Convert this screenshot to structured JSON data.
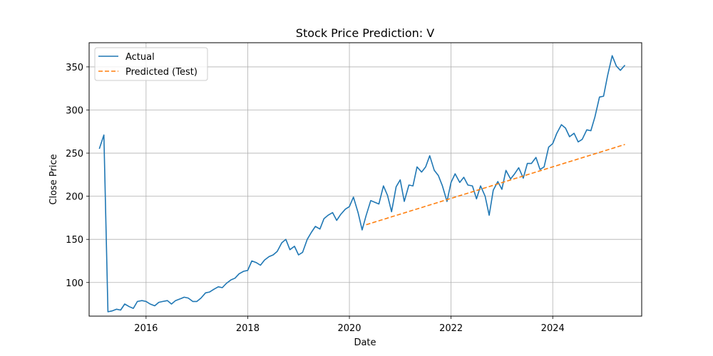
{
  "chart_data": {
    "type": "line",
    "title": "Stock Price Prediction: V",
    "xlabel": "Date",
    "ylabel": "Close Price",
    "xlim": [
      2014.88,
      2025.75
    ],
    "ylim": [
      61,
      378
    ],
    "grid": true,
    "legend_position": "top-left",
    "x_ticks": [
      2016,
      2018,
      2020,
      2022,
      2024
    ],
    "y_ticks": [
      100,
      150,
      200,
      250,
      300,
      350
    ],
    "series": [
      {
        "name": "Actual",
        "color": "#1f77b4",
        "style": "solid",
        "x": [
          2015.08,
          2015.17,
          2015.25,
          2015.33,
          2015.42,
          2015.5,
          2015.58,
          2015.67,
          2015.75,
          2015.83,
          2015.92,
          2016.0,
          2016.08,
          2016.17,
          2016.25,
          2016.33,
          2016.42,
          2016.5,
          2016.58,
          2016.67,
          2016.75,
          2016.83,
          2016.92,
          2017.0,
          2017.08,
          2017.17,
          2017.25,
          2017.33,
          2017.42,
          2017.5,
          2017.58,
          2017.67,
          2017.75,
          2017.83,
          2017.92,
          2018.0,
          2018.08,
          2018.17,
          2018.25,
          2018.33,
          2018.42,
          2018.5,
          2018.58,
          2018.67,
          2018.75,
          2018.83,
          2018.92,
          2019.0,
          2019.08,
          2019.17,
          2019.25,
          2019.33,
          2019.42,
          2019.5,
          2019.58,
          2019.67,
          2019.75,
          2019.83,
          2019.92,
          2020.0,
          2020.08,
          2020.17,
          2020.25,
          2020.33,
          2020.42,
          2020.5,
          2020.58,
          2020.67,
          2020.75,
          2020.83,
          2020.92,
          2021.0,
          2021.08,
          2021.17,
          2021.25,
          2021.33,
          2021.42,
          2021.5,
          2021.58,
          2021.67,
          2021.75,
          2021.83,
          2021.92,
          2022.0,
          2022.08,
          2022.17,
          2022.25,
          2022.33,
          2022.42,
          2022.5,
          2022.58,
          2022.67,
          2022.75,
          2022.83,
          2022.92,
          2023.0,
          2023.08,
          2023.17,
          2023.25,
          2023.33,
          2023.42,
          2023.5,
          2023.58,
          2023.67,
          2023.75,
          2023.83,
          2023.92,
          2024.0,
          2024.08,
          2024.17,
          2024.25,
          2024.33,
          2024.42,
          2024.5,
          2024.58,
          2024.67,
          2024.75,
          2024.83,
          2024.92,
          2025.0,
          2025.08,
          2025.17,
          2025.25,
          2025.33,
          2025.42
        ],
        "y": [
          255,
          271,
          66,
          67,
          69,
          68,
          75,
          72,
          70,
          78,
          79,
          78,
          75,
          73,
          77,
          78,
          79,
          75,
          79,
          81,
          83,
          82,
          78,
          78,
          82,
          88,
          89,
          92,
          95,
          94,
          99,
          103,
          105,
          110,
          113,
          114,
          125,
          123,
          120,
          126,
          130,
          132,
          136,
          146,
          150,
          138,
          142,
          132,
          135,
          150,
          158,
          165,
          162,
          174,
          178,
          181,
          172,
          179,
          185,
          188,
          199,
          181,
          161,
          178,
          195,
          193,
          191,
          212,
          201,
          182,
          211,
          219,
          194,
          213,
          212,
          234,
          228,
          234,
          247,
          230,
          224,
          212,
          194,
          216,
          226,
          216,
          222,
          213,
          212,
          197,
          212,
          200,
          178,
          207,
          217,
          208,
          230,
          220,
          226,
          233,
          221,
          238,
          238,
          245,
          231,
          234,
          257,
          261,
          273,
          283,
          279,
          269,
          273,
          263,
          266,
          277,
          276,
          292,
          315,
          316,
          340,
          363,
          351,
          346,
          352
        ]
      },
      {
        "name": "Predicted (Test)",
        "color": "#ff7f0e",
        "style": "dashed",
        "x": [
          2020.33,
          2025.42
        ],
        "y": [
          167,
          260
        ]
      }
    ]
  }
}
